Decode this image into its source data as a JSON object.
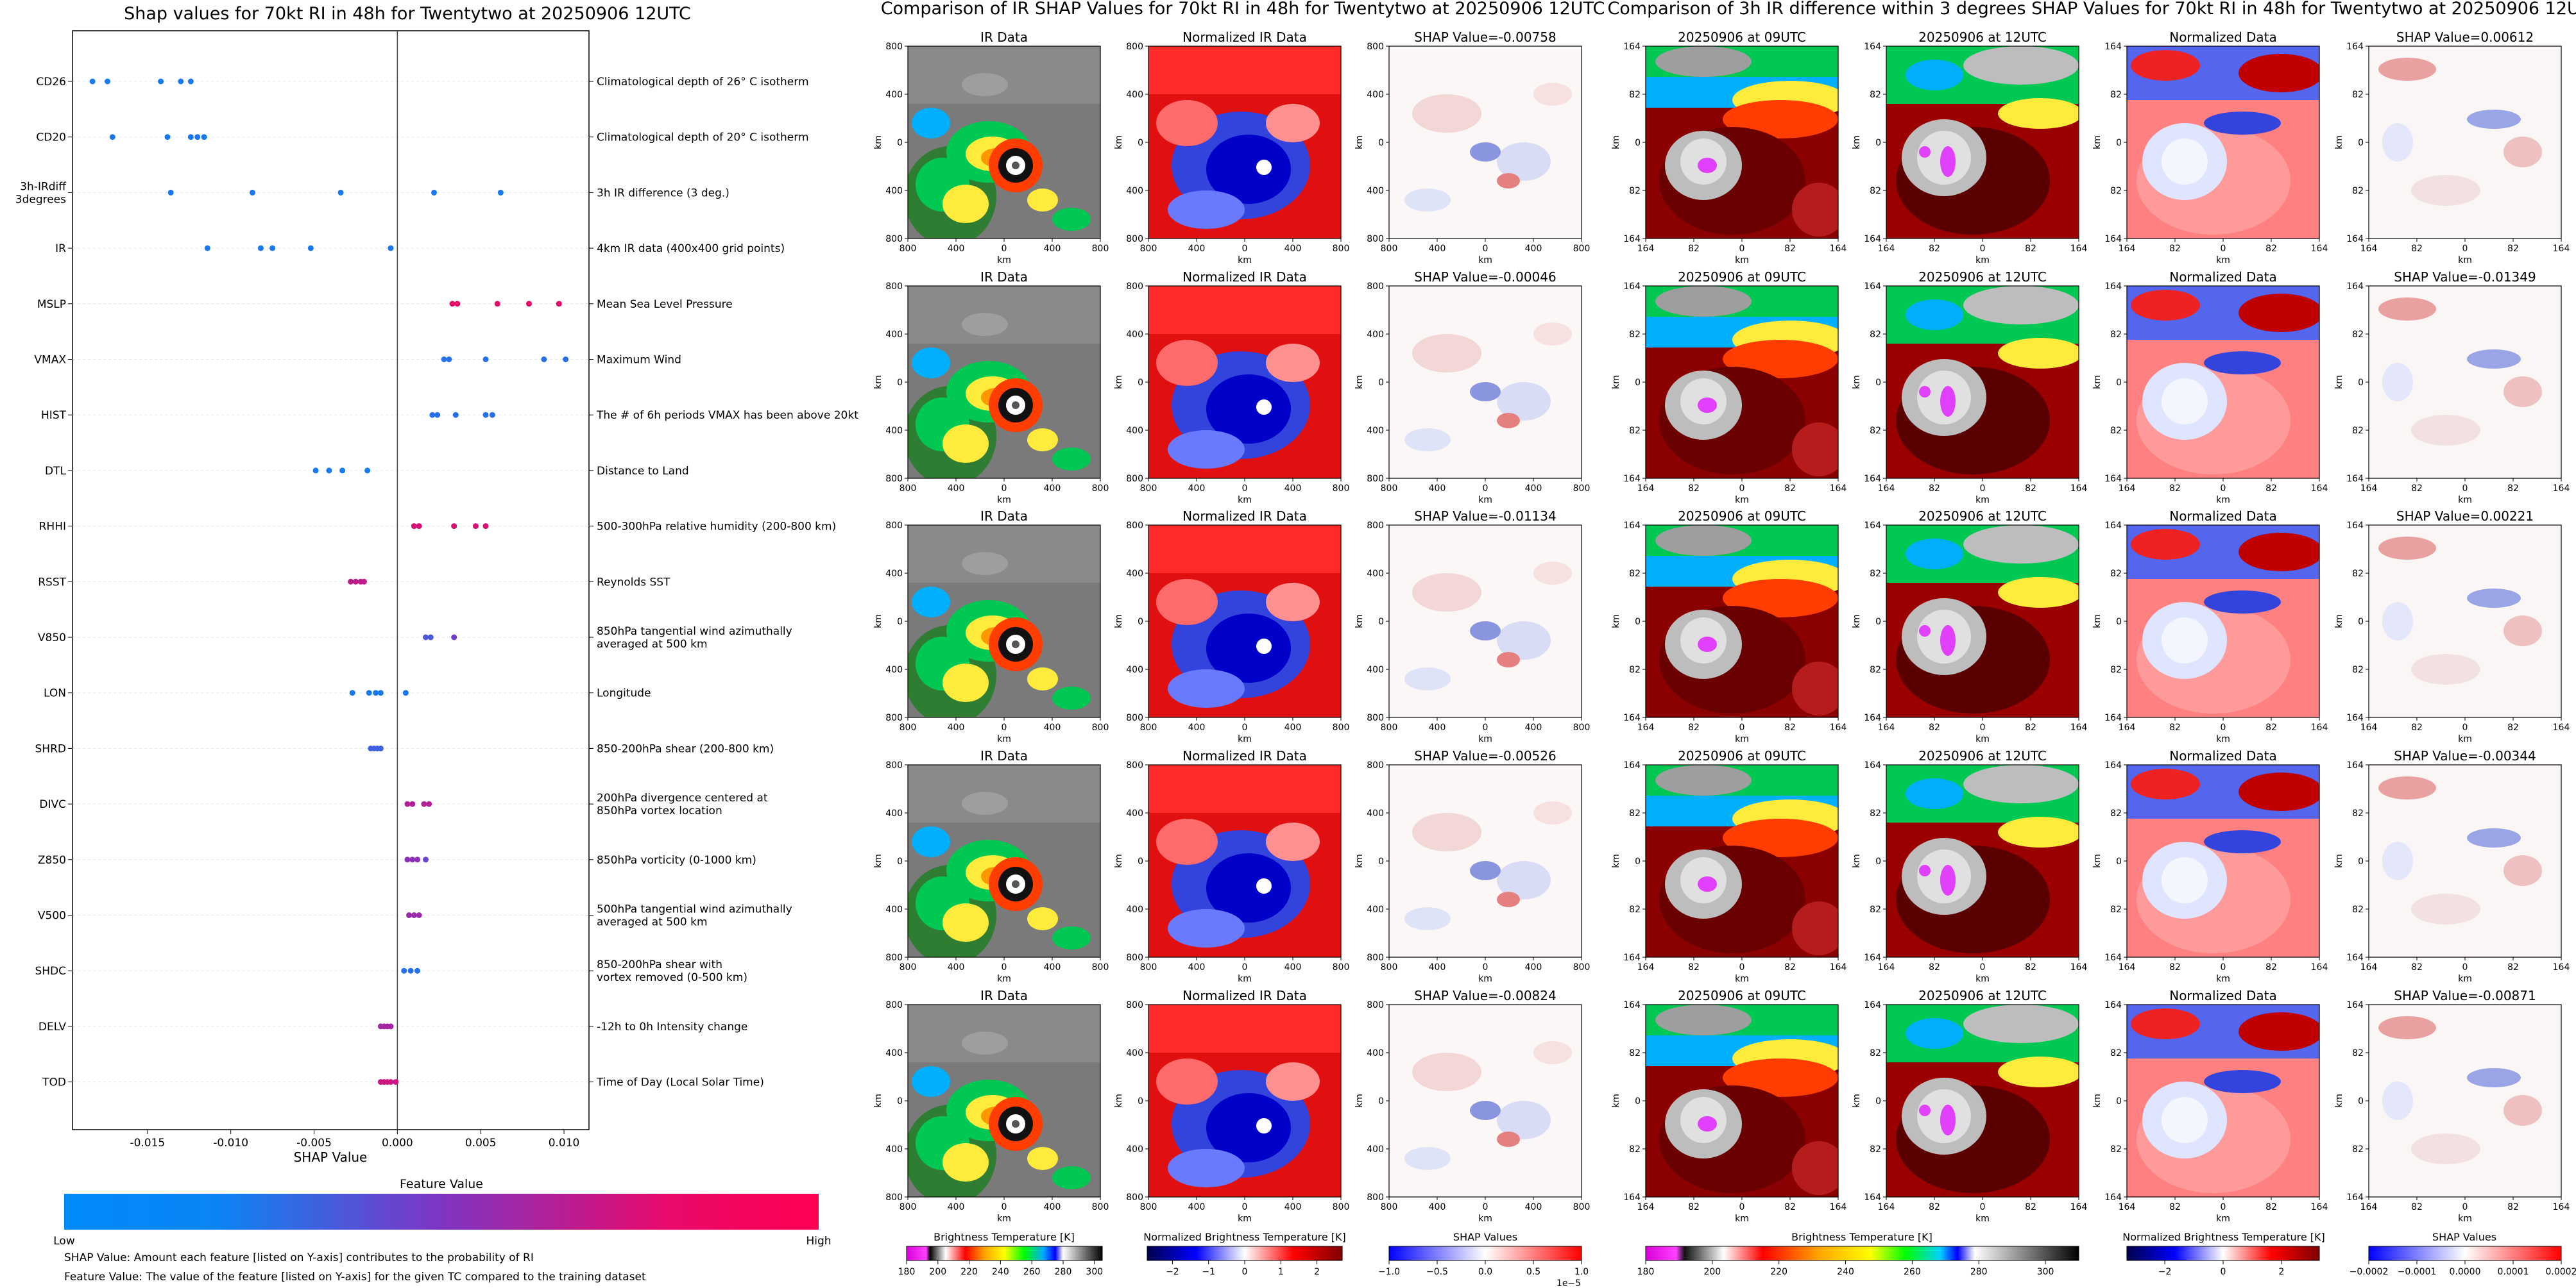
{
  "chart_data": [
    {
      "type": "scatter",
      "title": "Shap values for 70kt RI in 48h for Twentytwo at 20250906 12UTC",
      "xlabel": "SHAP Value",
      "xlim": [
        -0.0195,
        0.0115
      ],
      "xticks": [
        "-0.015",
        "-0.010",
        "-0.005",
        "0.000",
        "0.005",
        "0.010"
      ],
      "xtick_values": [
        -0.015,
        -0.01,
        -0.005,
        0.0,
        0.005,
        0.01
      ],
      "colorbar": {
        "title": "Feature Value",
        "low": "Low",
        "high": "High",
        "colors": [
          "#008afb",
          "#7f35c3",
          "#ff0052"
        ]
      },
      "notes": [
        "SHAP Value: Amount each feature [listed on Y-axis] contributes to the probability of RI",
        "Feature Value: The value of the feature [listed on Y-axis] for the given TC compared to the training dataset"
      ],
      "features": [
        {
          "name": "CD26",
          "desc": [
            "Climatological depth of 26° C isotherm"
          ],
          "x": [
            -0.0183,
            -0.0174,
            -0.0142,
            -0.013,
            -0.0124
          ],
          "v": [
            0.1,
            0.1,
            0.1,
            0.1,
            0.1
          ]
        },
        {
          "name": "CD20",
          "desc": [
            "Climatological depth of 20° C isotherm"
          ],
          "x": [
            -0.0171,
            -0.0138,
            -0.0124,
            -0.012,
            -0.0116
          ],
          "v": [
            0.1,
            0.1,
            0.1,
            0.1,
            0.1
          ]
        },
        {
          "name": "3h-IRdiff\n3degrees",
          "desc": [
            "3h IR difference (3 deg.)"
          ],
          "x": [
            -0.0136,
            -0.0087,
            -0.0034,
            0.0022,
            0.0062
          ],
          "v": [
            0.1,
            0.1,
            0.1,
            0.1,
            0.1
          ]
        },
        {
          "name": "IR",
          "desc": [
            "4km IR data (400x400 grid points)"
          ],
          "x": [
            -0.0114,
            -0.0082,
            -0.0075,
            -0.0052,
            -0.0004
          ],
          "v": [
            0.1,
            0.1,
            0.1,
            0.1,
            0.1
          ]
        },
        {
          "name": "MSLP",
          "desc": [
            "Mean Sea Level Pressure"
          ],
          "x": [
            0.0033,
            0.0036,
            0.006,
            0.0079,
            0.0097
          ],
          "v": [
            0.9,
            0.9,
            0.9,
            0.9,
            0.9
          ]
        },
        {
          "name": "VMAX",
          "desc": [
            "Maximum Wind"
          ],
          "x": [
            0.0028,
            0.0031,
            0.0053,
            0.0088,
            0.0101
          ],
          "v": [
            0.15,
            0.15,
            0.15,
            0.15,
            0.15
          ]
        },
        {
          "name": "HIST",
          "desc": [
            "The # of 6h periods VMAX has been above 20kt"
          ],
          "x": [
            0.0021,
            0.0024,
            0.0035,
            0.0053,
            0.0057
          ],
          "v": [
            0.15,
            0.15,
            0.15,
            0.15,
            0.15
          ]
        },
        {
          "name": "DTL",
          "desc": [
            "Distance to Land"
          ],
          "x": [
            -0.0049,
            -0.0041,
            -0.0033,
            -0.0018
          ],
          "v": [
            0.1,
            0.1,
            0.1,
            0.1
          ]
        },
        {
          "name": "RHHI",
          "desc": [
            "500-300hPa relative humidity (200-800 km)"
          ],
          "x": [
            0.001,
            0.0013,
            0.0034,
            0.0047,
            0.0053
          ],
          "v": [
            0.85,
            0.85,
            0.85,
            0.85,
            0.85
          ]
        },
        {
          "name": "RSST",
          "desc": [
            "Reynolds SST"
          ],
          "x": [
            -0.0028,
            -0.0025,
            -0.0022,
            -0.002
          ],
          "v": [
            0.75,
            0.75,
            0.75,
            0.75
          ]
        },
        {
          "name": "V850",
          "desc": [
            "850hPa tangential wind azimuthally",
            "averaged at 500 km"
          ],
          "x": [
            0.0017,
            0.002,
            0.0034
          ],
          "v": [
            0.3,
            0.3,
            0.45
          ]
        },
        {
          "name": "LON",
          "desc": [
            "Longitude"
          ],
          "x": [
            -0.0027,
            -0.0017,
            -0.0013,
            -0.001,
            0.0005
          ],
          "v": [
            0.1,
            0.1,
            0.1,
            0.1,
            0.1
          ]
        },
        {
          "name": "SHRD",
          "desc": [
            "850-200hPa shear (200-800 km)"
          ],
          "x": [
            -0.0016,
            -0.0014,
            -0.0012,
            -0.001
          ],
          "v": [
            0.25,
            0.25,
            0.25,
            0.25
          ]
        },
        {
          "name": "DIVC",
          "desc": [
            "200hPa divergence centered at",
            "850hPa vortex location"
          ],
          "x": [
            0.0006,
            0.0009,
            0.0016,
            0.0019
          ],
          "v": [
            0.7,
            0.7,
            0.7,
            0.7
          ]
        },
        {
          "name": "Z850",
          "desc": [
            "850hPa vorticity (0-1000 km)"
          ],
          "x": [
            0.0006,
            0.0009,
            0.0012,
            0.0017
          ],
          "v": [
            0.55,
            0.55,
            0.55,
            0.4
          ]
        },
        {
          "name": "V500",
          "desc": [
            "500hPa tangential wind azimuthally",
            "averaged at 500 km"
          ],
          "x": [
            0.0007,
            0.001,
            0.0013
          ],
          "v": [
            0.6,
            0.6,
            0.6
          ]
        },
        {
          "name": "SHDC",
          "desc": [
            "850-200hPa shear with",
            "vortex removed (0-500 km)"
          ],
          "x": [
            0.0004,
            0.0008,
            0.0012
          ],
          "v": [
            0.15,
            0.15,
            0.15
          ]
        },
        {
          "name": "DELV",
          "desc": [
            "-12h to 0h Intensity change"
          ],
          "x": [
            -0.001,
            -0.0008,
            -0.0006,
            -0.0004
          ],
          "v": [
            0.65,
            0.65,
            0.65,
            0.65
          ]
        },
        {
          "name": "TOD",
          "desc": [
            "Time of Day (Local Solar Time)"
          ],
          "x": [
            -0.001,
            -0.0008,
            -0.0006,
            -0.0004,
            -0.0001
          ],
          "v": [
            0.8,
            0.8,
            0.8,
            0.8,
            0.8
          ]
        }
      ]
    },
    {
      "type": "heatmap",
      "title": "Comparison of IR SHAP Values for 70kt RI in 48h for Twentytwo at 20250906 12UTC",
      "column_titles": [
        "IR Data",
        "Normalized IR Data",
        "SHAP Value"
      ],
      "shap_values": [
        "SHAP Value=-0.00758",
        "SHAP Value=-0.00046",
        "SHAP Value=-0.01134",
        "SHAP Value=-0.00526",
        "SHAP Value=-0.00824"
      ],
      "axis_label": "km",
      "ticks_y": [
        "800",
        "400",
        "0",
        "400",
        "800"
      ],
      "ticks_x": [
        "800",
        "400",
        "0",
        "400",
        "800"
      ],
      "colorbars": [
        {
          "label": "Brightness Temperature [K]",
          "ticks": [
            "180",
            "200",
            "220",
            "240",
            "260",
            "280",
            "300"
          ],
          "range": [
            180,
            305
          ]
        },
        {
          "label": "Normalized Brightness Temperature [K]",
          "ticks": [
            "−2",
            "−1",
            "0",
            "1",
            "2"
          ],
          "range": [
            -2.7,
            2.7
          ]
        },
        {
          "label": "SHAP Values",
          "ticks": [
            "−1.0",
            "−0.5",
            "0.0",
            "0.5",
            "1.0"
          ],
          "range": [
            -1.0,
            1.0
          ],
          "exponent": "1e−5"
        }
      ]
    },
    {
      "type": "heatmap",
      "title": "Comparison of 3h IR difference within 3 degrees SHAP Values for 70kt RI in 48h for Twentytwo at 20250906 12UTC",
      "column_titles": [
        "20250906 at 09UTC",
        "20250906 at 12UTC",
        "Normalized Data"
      ],
      "shap_values": [
        "SHAP Value=0.00612",
        "SHAP Value=-0.01349",
        "SHAP Value=0.00221",
        "SHAP Value=-0.00344",
        "SHAP Value=-0.00871"
      ],
      "axis_label": "km",
      "ticks_y": [
        "164",
        "82",
        "0",
        "82",
        "164"
      ],
      "ticks_x": [
        "164",
        "82",
        "0",
        "82",
        "164"
      ],
      "colorbars": [
        {
          "label": "Brightness Temperature [K]",
          "ticks": [
            "180",
            "200",
            "220",
            "240",
            "260",
            "280",
            "300"
          ],
          "range": [
            180,
            310
          ]
        },
        {
          "label": "Normalized Brightness Temperature [K]",
          "ticks": [
            "−2",
            "0",
            "2"
          ],
          "range": [
            -3.3,
            3.3
          ]
        },
        {
          "label": "SHAP Values",
          "ticks": [
            "−0.0002",
            "−0.0001",
            "0.0000",
            "0.0001",
            "0.0002"
          ],
          "range": [
            -0.0002,
            0.0002
          ]
        }
      ]
    }
  ]
}
